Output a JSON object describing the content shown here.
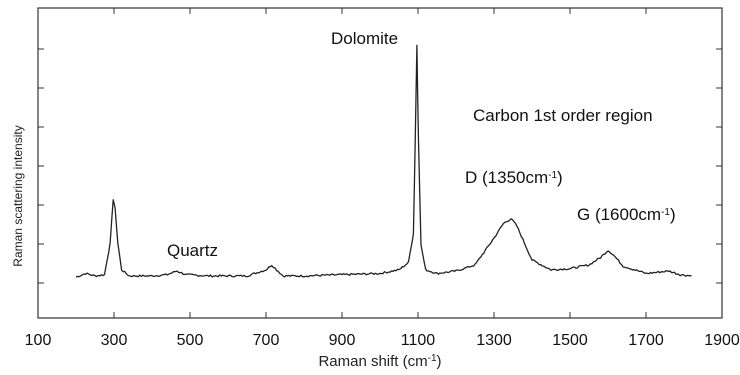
{
  "chart_data": {
    "type": "line",
    "title": "",
    "xlabel": "Raman shift (cm",
    "xlabel_sup": "-1",
    "xlabel_close": ")",
    "ylabel": "Raman scattering intensity",
    "xlim": [
      100,
      1900
    ],
    "ylim": [
      0,
      10
    ],
    "x_tick_labels": [
      "100",
      "300",
      "500",
      "700",
      "900",
      "1100",
      "1300",
      "1500",
      "1700",
      "1900"
    ],
    "y_ticks_labeled": false,
    "grid": false,
    "legend": "none",
    "line_color": "#222222",
    "series": [
      {
        "x": [
          200,
          225,
          250,
          275,
          290,
          298,
          303,
          310,
          320,
          340,
          400,
          440,
          465,
          490,
          550,
          650,
          700,
          715,
          728,
          745,
          800,
          900,
          1000,
          1050,
          1075,
          1088,
          1093,
          1097,
          1101,
          1108,
          1120,
          1150,
          1200,
          1250,
          1300,
          1325,
          1345,
          1360,
          1380,
          1400,
          1450,
          1500,
          1550,
          1580,
          1600,
          1615,
          1640,
          1700,
          1760,
          1790,
          1820
        ],
        "y": [
          0.2,
          0.35,
          0.25,
          0.3,
          1.6,
          3.4,
          3.0,
          1.6,
          0.5,
          0.25,
          0.25,
          0.3,
          0.45,
          0.3,
          0.25,
          0.25,
          0.5,
          0.7,
          0.5,
          0.25,
          0.25,
          0.3,
          0.35,
          0.5,
          0.8,
          2.0,
          6.0,
          9.7,
          6.0,
          1.5,
          0.5,
          0.35,
          0.45,
          0.7,
          1.8,
          2.4,
          2.6,
          2.3,
          1.6,
          0.9,
          0.5,
          0.55,
          0.7,
          1.0,
          1.3,
          1.1,
          0.65,
          0.35,
          0.45,
          0.3,
          0.25
        ]
      }
    ],
    "annotations": [
      {
        "id": "dolomite",
        "text": "Dolomite",
        "sup": "",
        "tail": ""
      },
      {
        "id": "carbon",
        "text": "Carbon 1st order region",
        "sup": "",
        "tail": ""
      },
      {
        "id": "d-band",
        "text": "D (1350cm",
        "sup": "-1",
        "tail": ")"
      },
      {
        "id": "g-band",
        "text": "G (1600cm",
        "sup": "-1",
        "tail": ")"
      },
      {
        "id": "quartz",
        "text": "Quartz",
        "sup": "",
        "tail": ""
      }
    ]
  }
}
